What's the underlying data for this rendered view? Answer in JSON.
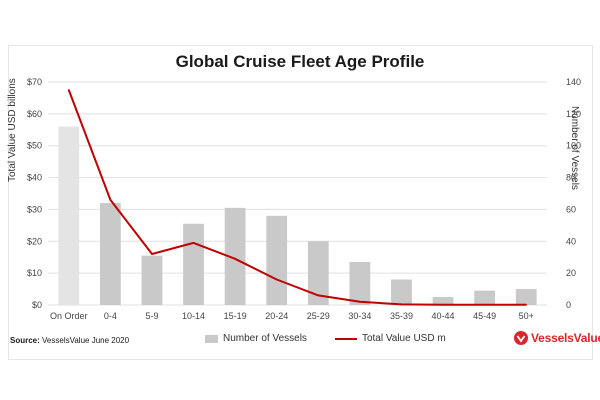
{
  "page": {
    "source_label": "Source:",
    "source_text": "VesselsValue June 2020",
    "logo_text": "VesselsValue"
  },
  "colors": {
    "bar": "#c9c9c9",
    "bar_on_order": "#e4e4e4",
    "line": "#c00000",
    "brand": "#d9272e"
  },
  "chart_data": {
    "type": "bar",
    "title": "Global Cruise Fleet Age Profile",
    "categories": [
      "On Order",
      "0-4",
      "5-9",
      "10-14",
      "15-19",
      "20-24",
      "25-29",
      "30-34",
      "35-39",
      "40-44",
      "45-49",
      "50+"
    ],
    "series": [
      {
        "name": "Number of Vessels",
        "type": "bar",
        "axis": "right",
        "values": [
          112,
          64,
          31,
          51,
          61,
          56,
          40,
          27,
          16,
          5,
          9,
          10
        ]
      },
      {
        "name": "Total Value USD m",
        "type": "line",
        "axis": "left",
        "values": [
          67.5,
          33,
          16,
          19.5,
          14.5,
          8,
          3,
          1,
          0.2,
          0.1,
          0.1,
          0.1
        ]
      }
    ],
    "ylabel_left": "Total Value USD billons",
    "ylabel_right": "Number of Vessels",
    "ylim_left": [
      0,
      70
    ],
    "ylim_right": [
      0,
      140
    ],
    "yticks_left": [
      "$0",
      "$10",
      "$20",
      "$30",
      "$40",
      "$50",
      "$60",
      "$70"
    ],
    "yticks_right": [
      "0",
      "20",
      "40",
      "60",
      "80",
      "100",
      "120",
      "140"
    ],
    "grid": true,
    "legend_position": "bottom"
  }
}
